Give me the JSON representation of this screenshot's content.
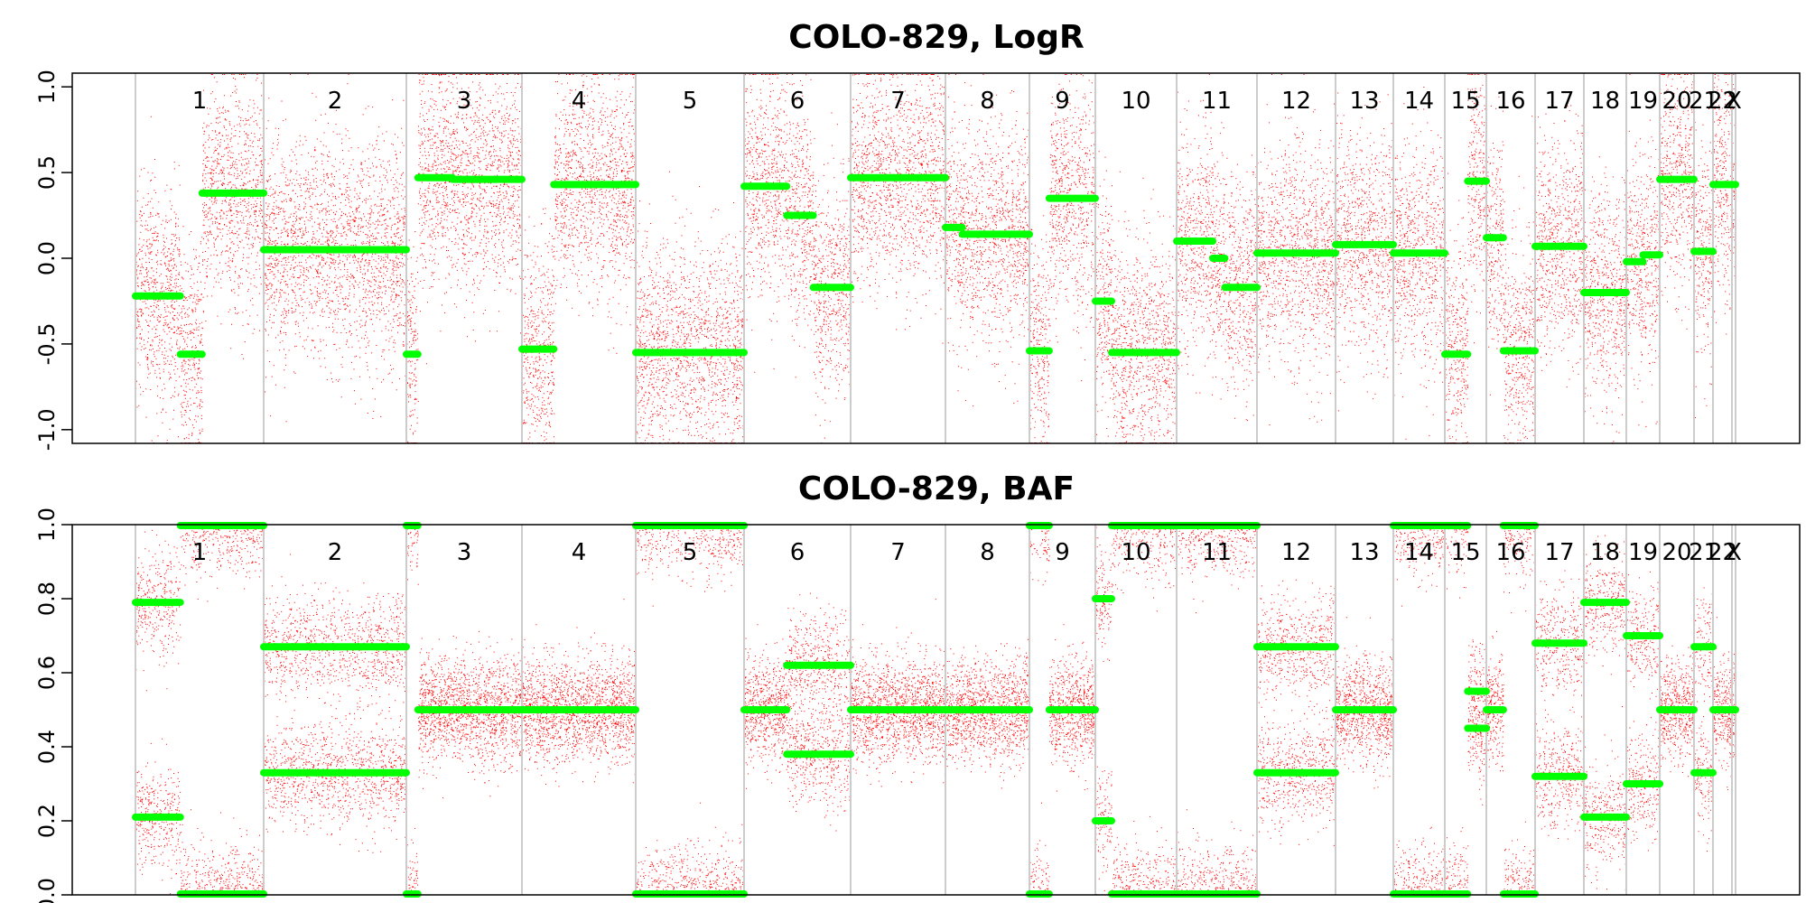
{
  "chart_data": [
    {
      "type": "scatter",
      "title": "COLO-829, LogR",
      "ylim": [
        -1.08,
        1.08
      ],
      "yticks": [
        -1.0,
        -0.5,
        0.0,
        0.5,
        1.0
      ],
      "ytick_labels": [
        "-1.0",
        "-0.5",
        "0.0",
        "0.5",
        "1.0"
      ],
      "chromosomes": [
        "1",
        "2",
        "3",
        "4",
        "5",
        "6",
        "7",
        "8",
        "9",
        "10",
        "11",
        "12",
        "13",
        "14",
        "15",
        "16",
        "17",
        "18",
        "19",
        "20",
        "21",
        "22",
        "X"
      ],
      "point_color": "#ff0000",
      "segment_color": "#00ff00",
      "segments": [
        {
          "chrom": "1",
          "start": 0.0,
          "end": 0.35,
          "value": -0.22
        },
        {
          "chrom": "1",
          "start": 0.35,
          "end": 0.52,
          "value": -0.56
        },
        {
          "chrom": "1",
          "start": 0.52,
          "end": 1.0,
          "value": 0.38
        },
        {
          "chrom": "2",
          "start": 0.0,
          "end": 1.0,
          "value": 0.05
        },
        {
          "chrom": "3",
          "start": 0.0,
          "end": 0.1,
          "value": -0.56
        },
        {
          "chrom": "3",
          "start": 0.1,
          "end": 0.4,
          "value": 0.47
        },
        {
          "chrom": "3",
          "start": 0.4,
          "end": 1.0,
          "value": 0.46
        },
        {
          "chrom": "4",
          "start": 0.0,
          "end": 0.28,
          "value": -0.53
        },
        {
          "chrom": "4",
          "start": 0.28,
          "end": 1.0,
          "value": 0.43
        },
        {
          "chrom": "5",
          "start": 0.0,
          "end": 1.0,
          "value": -0.55
        },
        {
          "chrom": "6",
          "start": 0.0,
          "end": 0.4,
          "value": 0.42
        },
        {
          "chrom": "6",
          "start": 0.4,
          "end": 0.65,
          "value": 0.25
        },
        {
          "chrom": "6",
          "start": 0.65,
          "end": 1.0,
          "value": -0.17
        },
        {
          "chrom": "7",
          "start": 0.0,
          "end": 0.9,
          "value": 0.47
        },
        {
          "chrom": "7",
          "start": 0.9,
          "end": 1.0,
          "value": 0.47
        },
        {
          "chrom": "8",
          "start": 0.0,
          "end": 0.2,
          "value": 0.18
        },
        {
          "chrom": "8",
          "start": 0.2,
          "end": 1.0,
          "value": 0.14
        },
        {
          "chrom": "9",
          "start": 0.0,
          "end": 0.3,
          "value": -0.54
        },
        {
          "chrom": "9",
          "start": 0.3,
          "end": 1.0,
          "value": 0.35
        },
        {
          "chrom": "10",
          "start": 0.0,
          "end": 0.2,
          "value": -0.25
        },
        {
          "chrom": "10",
          "start": 0.2,
          "end": 1.0,
          "value": -0.55
        },
        {
          "chrom": "11",
          "start": 0.0,
          "end": 0.45,
          "value": 0.1
        },
        {
          "chrom": "11",
          "start": 0.45,
          "end": 0.6,
          "value": 0.0
        },
        {
          "chrom": "11",
          "start": 0.6,
          "end": 1.0,
          "value": -0.17
        },
        {
          "chrom": "12",
          "start": 0.0,
          "end": 1.0,
          "value": 0.03
        },
        {
          "chrom": "13",
          "start": 0.0,
          "end": 1.0,
          "value": 0.08
        },
        {
          "chrom": "14",
          "start": 0.0,
          "end": 1.0,
          "value": 0.03
        },
        {
          "chrom": "15",
          "start": 0.0,
          "end": 0.55,
          "value": -0.56
        },
        {
          "chrom": "15",
          "start": 0.55,
          "end": 1.0,
          "value": 0.45
        },
        {
          "chrom": "16",
          "start": 0.0,
          "end": 0.35,
          "value": 0.12
        },
        {
          "chrom": "16",
          "start": 0.35,
          "end": 1.0,
          "value": -0.54
        },
        {
          "chrom": "17",
          "start": 0.0,
          "end": 1.0,
          "value": 0.07
        },
        {
          "chrom": "18",
          "start": 0.0,
          "end": 1.0,
          "value": -0.2
        },
        {
          "chrom": "19",
          "start": 0.0,
          "end": 0.5,
          "value": -0.02
        },
        {
          "chrom": "19",
          "start": 0.5,
          "end": 1.0,
          "value": 0.02
        },
        {
          "chrom": "20",
          "start": 0.0,
          "end": 1.0,
          "value": 0.46
        },
        {
          "chrom": "21",
          "start": 0.0,
          "end": 1.0,
          "value": 0.04
        },
        {
          "chrom": "22",
          "start": 0.0,
          "end": 1.0,
          "value": 0.43
        },
        {
          "chrom": "X",
          "start": 0.0,
          "end": 1.0,
          "value": 0.43
        }
      ]
    },
    {
      "type": "scatter",
      "title": "COLO-829, BAF",
      "ylim": [
        0.0,
        1.0
      ],
      "yticks": [
        0.0,
        0.2,
        0.4,
        0.6,
        0.8,
        1.0
      ],
      "ytick_labels": [
        "0.0",
        "0.2",
        "0.4",
        "0.6",
        "0.8",
        "1.0"
      ],
      "chromosomes": [
        "1",
        "2",
        "3",
        "4",
        "5",
        "6",
        "7",
        "8",
        "9",
        "10",
        "11",
        "12",
        "13",
        "14",
        "15",
        "16",
        "17",
        "18",
        "19",
        "20",
        "21",
        "22",
        "X"
      ],
      "point_color": "#ff0000",
      "segment_color": "#00ff00",
      "segments": [
        {
          "chrom": "1",
          "start": 0.0,
          "end": 0.35,
          "values": [
            0.21,
            0.79
          ]
        },
        {
          "chrom": "1",
          "start": 0.35,
          "end": 1.0,
          "values": [
            0.0,
            1.0
          ]
        },
        {
          "chrom": "2",
          "start": 0.0,
          "end": 1.0,
          "values": [
            0.33,
            0.67
          ]
        },
        {
          "chrom": "3",
          "start": 0.0,
          "end": 0.1,
          "values": [
            0.0,
            1.0
          ]
        },
        {
          "chrom": "3",
          "start": 0.1,
          "end": 1.0,
          "values": [
            0.5
          ]
        },
        {
          "chrom": "4",
          "start": 0.0,
          "end": 1.0,
          "values": [
            0.5
          ]
        },
        {
          "chrom": "5",
          "start": 0.0,
          "end": 1.0,
          "values": [
            0.0,
            1.0
          ]
        },
        {
          "chrom": "6",
          "start": 0.0,
          "end": 0.4,
          "values": [
            0.5
          ]
        },
        {
          "chrom": "6",
          "start": 0.4,
          "end": 1.0,
          "values": [
            0.38,
            0.62
          ]
        },
        {
          "chrom": "7",
          "start": 0.0,
          "end": 1.0,
          "values": [
            0.5
          ]
        },
        {
          "chrom": "8",
          "start": 0.0,
          "end": 1.0,
          "values": [
            0.5
          ]
        },
        {
          "chrom": "9",
          "start": 0.0,
          "end": 0.3,
          "values": [
            0.0,
            1.0
          ]
        },
        {
          "chrom": "9",
          "start": 0.3,
          "end": 1.0,
          "values": [
            0.5
          ]
        },
        {
          "chrom": "10",
          "start": 0.0,
          "end": 0.2,
          "values": [
            0.2,
            0.8
          ]
        },
        {
          "chrom": "10",
          "start": 0.2,
          "end": 1.0,
          "values": [
            0.0,
            1.0
          ]
        },
        {
          "chrom": "11",
          "start": 0.0,
          "end": 1.0,
          "values": [
            0.0,
            1.0
          ]
        },
        {
          "chrom": "12",
          "start": 0.0,
          "end": 1.0,
          "values": [
            0.33,
            0.67
          ]
        },
        {
          "chrom": "13",
          "start": 0.0,
          "end": 1.0,
          "values": [
            0.5
          ]
        },
        {
          "chrom": "14",
          "start": 0.0,
          "end": 1.0,
          "values": [
            0.0,
            1.0
          ]
        },
        {
          "chrom": "15",
          "start": 0.0,
          "end": 0.55,
          "values": [
            0.0,
            1.0
          ]
        },
        {
          "chrom": "15",
          "start": 0.55,
          "end": 1.0,
          "values": [
            0.45,
            0.55
          ]
        },
        {
          "chrom": "16",
          "start": 0.0,
          "end": 0.35,
          "values": [
            0.5
          ]
        },
        {
          "chrom": "16",
          "start": 0.35,
          "end": 1.0,
          "values": [
            0.0,
            1.0
          ]
        },
        {
          "chrom": "17",
          "start": 0.0,
          "end": 1.0,
          "values": [
            0.32,
            0.68
          ]
        },
        {
          "chrom": "18",
          "start": 0.0,
          "end": 1.0,
          "values": [
            0.21,
            0.79
          ]
        },
        {
          "chrom": "19",
          "start": 0.0,
          "end": 1.0,
          "values": [
            0.3,
            0.7
          ]
        },
        {
          "chrom": "20",
          "start": 0.0,
          "end": 1.0,
          "values": [
            0.5
          ]
        },
        {
          "chrom": "21",
          "start": 0.0,
          "end": 1.0,
          "values": [
            0.33,
            0.67
          ]
        },
        {
          "chrom": "22",
          "start": 0.0,
          "end": 1.0,
          "values": [
            0.5
          ]
        },
        {
          "chrom": "X",
          "start": 0.0,
          "end": 1.0,
          "values": [
            0.5
          ]
        }
      ]
    }
  ]
}
